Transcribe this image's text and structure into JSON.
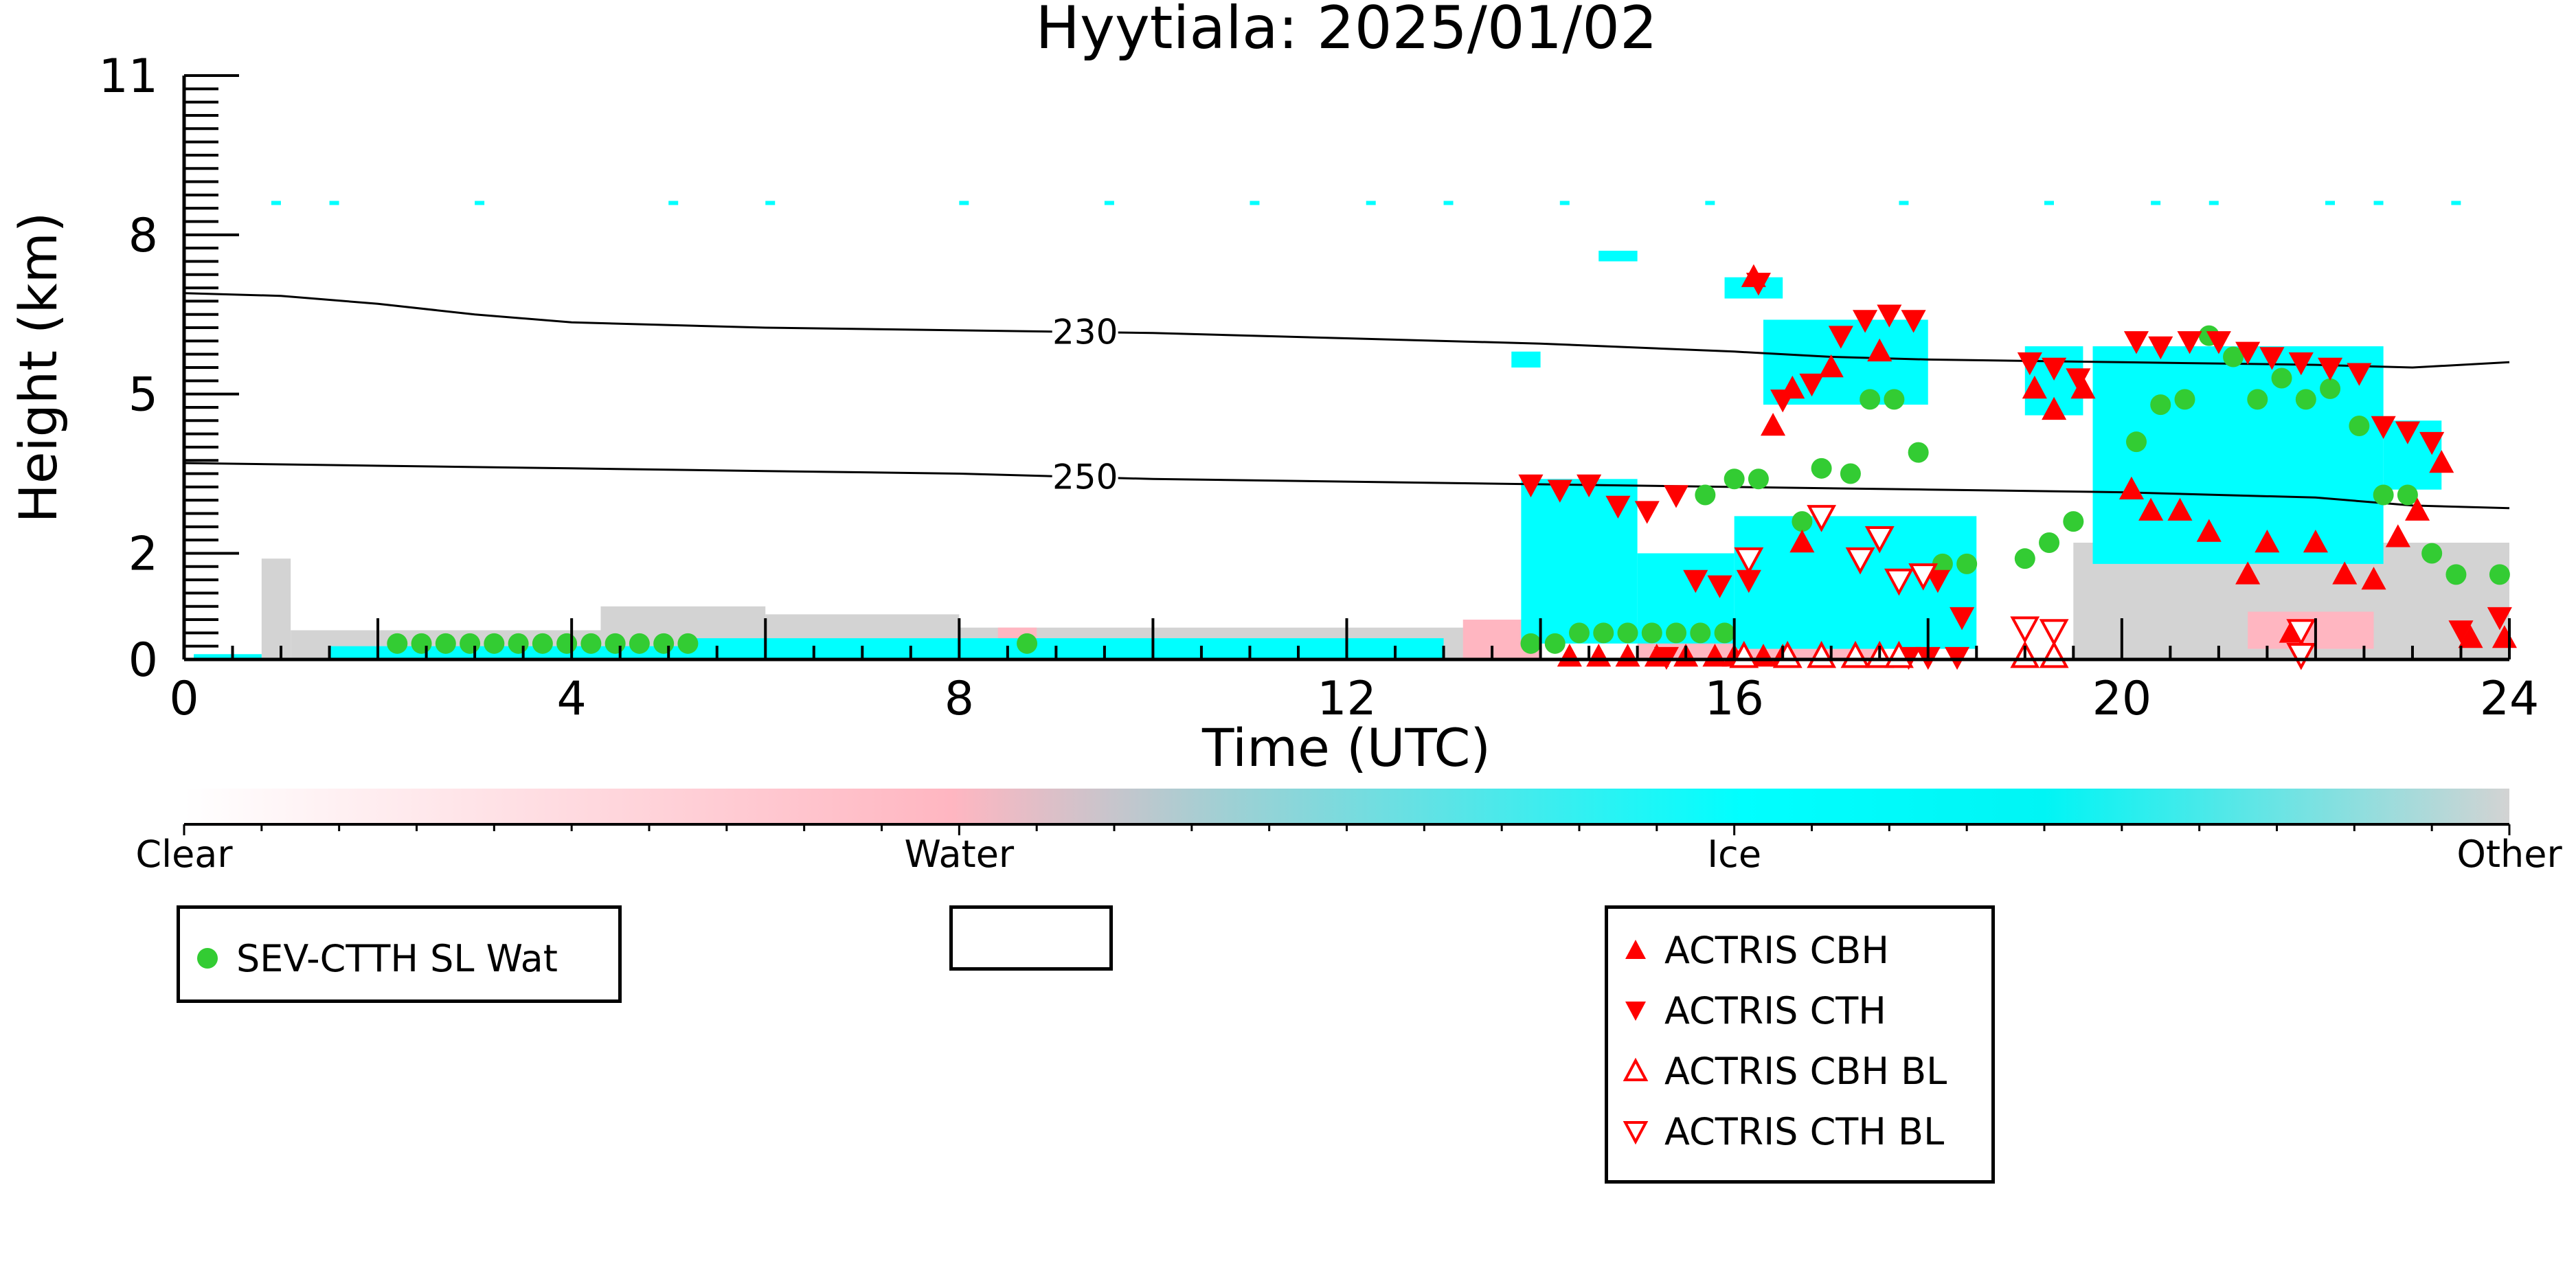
{
  "chart_data": {
    "type": "scatter",
    "title": "Hyytiala: 2025/01/02",
    "xlabel": "Time (UTC)",
    "ylabel": "Height (km)",
    "xlim": [
      0,
      24
    ],
    "ylim": [
      0,
      11
    ],
    "x_ticks": [
      0,
      4,
      8,
      12,
      16,
      20,
      24
    ],
    "y_ticks": [
      0,
      2,
      5,
      8,
      11
    ],
    "y_tick_labels": [
      "0",
      "2",
      "5",
      "8",
      "11"
    ],
    "colors": {
      "clear": "#ffffff",
      "water": "#ffb6c1",
      "ice": "#00ffff",
      "other": "#d3d3d3",
      "sev_ctth": "#33cc33",
      "actris": "#ff0000"
    },
    "colorbar": {
      "labels": [
        "Clear",
        "Water",
        "Ice",
        "Other"
      ]
    },
    "contours": [
      {
        "label": "230",
        "label_x": 9.3,
        "points": [
          [
            0,
            6.9
          ],
          [
            1,
            6.85
          ],
          [
            2,
            6.7
          ],
          [
            3,
            6.5
          ],
          [
            4,
            6.35
          ],
          [
            6,
            6.25
          ],
          [
            8,
            6.2
          ],
          [
            10,
            6.15
          ],
          [
            12,
            6.05
          ],
          [
            14,
            5.95
          ],
          [
            16,
            5.8
          ],
          [
            17,
            5.7
          ],
          [
            18,
            5.65
          ],
          [
            20,
            5.6
          ],
          [
            22,
            5.55
          ],
          [
            23,
            5.5
          ],
          [
            24,
            5.6
          ]
        ]
      },
      {
        "label": "250",
        "label_x": 9.3,
        "points": [
          [
            0,
            3.7
          ],
          [
            2,
            3.65
          ],
          [
            4,
            3.6
          ],
          [
            6,
            3.55
          ],
          [
            8,
            3.5
          ],
          [
            10,
            3.4
          ],
          [
            12,
            3.35
          ],
          [
            14,
            3.3
          ],
          [
            16,
            3.25
          ],
          [
            18,
            3.2
          ],
          [
            20,
            3.15
          ],
          [
            22,
            3.05
          ],
          [
            23,
            2.9
          ],
          [
            24,
            2.85
          ]
        ]
      }
    ],
    "clouds": {
      "other": [
        {
          "x0": 0.8,
          "x1": 1.1,
          "y0": 0,
          "y1": 1.9
        },
        {
          "x0": 1.1,
          "x1": 4.3,
          "y0": 0,
          "y1": 0.55
        },
        {
          "x0": 4.3,
          "x1": 6.0,
          "y0": 0,
          "y1": 1.0
        },
        {
          "x0": 6.0,
          "x1": 8.0,
          "y0": 0,
          "y1": 0.85
        },
        {
          "x0": 8.0,
          "x1": 13.7,
          "y0": 0,
          "y1": 0.6
        },
        {
          "x0": 19.5,
          "x1": 24.0,
          "y0": 0,
          "y1": 2.2
        }
      ],
      "water": [
        {
          "x0": 8.4,
          "x1": 8.8,
          "y0": 0,
          "y1": 0.6
        },
        {
          "x0": 13.2,
          "x1": 14.0,
          "y0": 0,
          "y1": 0.75
        },
        {
          "x0": 15.0,
          "x1": 17.5,
          "y0": 0,
          "y1": 0.7
        },
        {
          "x0": 21.3,
          "x1": 22.6,
          "y0": 0.2,
          "y1": 0.9
        }
      ],
      "ice": [
        {
          "x0": 0.1,
          "x1": 0.8,
          "y0": 0,
          "y1": 0.1
        },
        {
          "x0": 1.5,
          "x1": 5.2,
          "y0": 0,
          "y1": 0.25
        },
        {
          "x0": 5.2,
          "x1": 13.0,
          "y0": 0,
          "y1": 0.4
        },
        {
          "x0": 13.8,
          "x1": 15.0,
          "y0": 0.3,
          "y1": 3.4
        },
        {
          "x0": 15.0,
          "x1": 16.0,
          "y0": 0.3,
          "y1": 2.0
        },
        {
          "x0": 16.0,
          "x1": 18.5,
          "y0": 0.2,
          "y1": 2.7
        },
        {
          "x0": 16.3,
          "x1": 18.0,
          "y0": 4.8,
          "y1": 6.4
        },
        {
          "x0": 19.0,
          "x1": 19.6,
          "y0": 4.6,
          "y1": 5.9
        },
        {
          "x0": 19.7,
          "x1": 22.7,
          "y0": 1.8,
          "y1": 5.9
        },
        {
          "x0": 22.7,
          "x1": 23.3,
          "y0": 3.2,
          "y1": 4.5
        },
        {
          "x0": 15.9,
          "x1": 16.5,
          "y0": 6.8,
          "y1": 7.2
        },
        {
          "x0": 14.6,
          "x1": 15.0,
          "y0": 7.5,
          "y1": 7.7
        },
        {
          "x0": 13.7,
          "x1": 14.0,
          "y0": 5.5,
          "y1": 5.8
        }
      ],
      "ice_sparse_band": {
        "y": 8.6,
        "x": [
          0.9,
          1.5,
          3.0,
          5.0,
          6.0,
          8.0,
          9.5,
          11.0,
          12.2,
          13.0,
          14.2,
          15.7,
          17.7,
          19.2,
          20.3,
          20.9,
          22.1,
          22.6,
          23.4
        ]
      }
    },
    "series": [
      {
        "name": "SEV-CTTH SL Wat",
        "marker": "filled-circle",
        "points": [
          [
            2.2,
            0.3
          ],
          [
            2.45,
            0.3
          ],
          [
            2.7,
            0.3
          ],
          [
            2.95,
            0.3
          ],
          [
            3.2,
            0.3
          ],
          [
            3.45,
            0.3
          ],
          [
            3.7,
            0.3
          ],
          [
            3.95,
            0.3
          ],
          [
            4.2,
            0.3
          ],
          [
            4.45,
            0.3
          ],
          [
            4.7,
            0.3
          ],
          [
            4.95,
            0.3
          ],
          [
            5.2,
            0.3
          ],
          [
            8.7,
            0.3
          ],
          [
            13.9,
            0.3
          ],
          [
            14.15,
            0.3
          ],
          [
            14.4,
            0.5
          ],
          [
            14.65,
            0.5
          ],
          [
            14.9,
            0.5
          ],
          [
            15.15,
            0.5
          ],
          [
            15.4,
            0.5
          ],
          [
            15.65,
            0.5
          ],
          [
            15.9,
            0.5
          ],
          [
            15.7,
            3.1
          ],
          [
            16.0,
            3.4
          ],
          [
            16.25,
            3.4
          ],
          [
            16.7,
            2.6
          ],
          [
            16.9,
            3.6
          ],
          [
            17.2,
            3.5
          ],
          [
            17.4,
            4.9
          ],
          [
            17.65,
            4.9
          ],
          [
            17.9,
            3.9
          ],
          [
            18.15,
            1.8
          ],
          [
            18.4,
            1.8
          ],
          [
            19.0,
            1.9
          ],
          [
            19.25,
            2.2
          ],
          [
            19.5,
            2.6
          ],
          [
            20.15,
            4.1
          ],
          [
            20.4,
            4.8
          ],
          [
            20.65,
            4.9
          ],
          [
            20.9,
            6.1
          ],
          [
            21.15,
            5.7
          ],
          [
            21.4,
            4.9
          ],
          [
            21.65,
            5.3
          ],
          [
            21.9,
            4.9
          ],
          [
            22.15,
            5.1
          ],
          [
            22.45,
            4.4
          ],
          [
            22.7,
            3.1
          ],
          [
            22.95,
            3.1
          ],
          [
            23.2,
            2.0
          ],
          [
            23.45,
            1.6
          ],
          [
            23.9,
            1.6
          ]
        ]
      },
      {
        "name": "ACTRIS CBH",
        "marker": "filled-triangle-up",
        "points": [
          [
            16.2,
            7.2
          ],
          [
            16.4,
            4.4
          ],
          [
            16.6,
            5.1
          ],
          [
            17.0,
            5.5
          ],
          [
            17.5,
            5.8
          ],
          [
            19.1,
            5.1
          ],
          [
            19.3,
            4.7
          ],
          [
            19.6,
            5.1
          ],
          [
            20.1,
            3.2
          ],
          [
            20.3,
            2.8
          ],
          [
            20.6,
            2.8
          ],
          [
            20.9,
            2.4
          ],
          [
            21.3,
            1.6
          ],
          [
            21.5,
            2.2
          ],
          [
            21.75,
            0.5
          ],
          [
            22.0,
            2.2
          ],
          [
            22.3,
            1.6
          ],
          [
            22.6,
            1.5
          ],
          [
            22.85,
            2.3
          ],
          [
            23.05,
            2.8
          ],
          [
            23.3,
            3.7
          ],
          [
            23.6,
            0.4
          ],
          [
            23.95,
            0.4
          ],
          [
            16.0,
            0.05
          ],
          [
            16.3,
            0.05
          ],
          [
            16.5,
            0.05
          ],
          [
            16.7,
            2.2
          ],
          [
            14.3,
            0.05
          ],
          [
            14.6,
            0.05
          ],
          [
            14.9,
            0.05
          ],
          [
            15.2,
            0.05
          ],
          [
            15.5,
            0.05
          ],
          [
            15.8,
            0.05
          ]
        ]
      },
      {
        "name": "ACTRIS CTH",
        "marker": "filled-triangle-down",
        "points": [
          [
            13.9,
            3.3
          ],
          [
            14.2,
            3.2
          ],
          [
            14.5,
            3.3
          ],
          [
            14.8,
            2.9
          ],
          [
            15.1,
            2.8
          ],
          [
            15.4,
            3.1
          ],
          [
            15.6,
            1.5
          ],
          [
            15.85,
            1.4
          ],
          [
            16.15,
            1.5
          ],
          [
            16.25,
            7.1
          ],
          [
            16.5,
            4.9
          ],
          [
            16.8,
            5.2
          ],
          [
            17.1,
            6.1
          ],
          [
            17.35,
            6.4
          ],
          [
            17.6,
            6.5
          ],
          [
            17.85,
            6.4
          ],
          [
            19.05,
            5.6
          ],
          [
            19.3,
            5.5
          ],
          [
            19.55,
            5.3
          ],
          [
            20.15,
            6.0
          ],
          [
            20.4,
            5.9
          ],
          [
            20.7,
            6.0
          ],
          [
            21.0,
            6.0
          ],
          [
            21.3,
            5.8
          ],
          [
            21.55,
            5.7
          ],
          [
            21.85,
            5.6
          ],
          [
            22.15,
            5.5
          ],
          [
            22.45,
            5.4
          ],
          [
            22.7,
            4.4
          ],
          [
            22.95,
            4.3
          ],
          [
            23.2,
            4.1
          ],
          [
            23.5,
            0.55
          ],
          [
            23.9,
            0.8
          ],
          [
            18.1,
            1.5
          ],
          [
            18.35,
            0.8
          ],
          [
            15.3,
            0.05
          ],
          [
            17.8,
            0.05
          ],
          [
            18.0,
            0.05
          ],
          [
            18.3,
            0.05
          ]
        ]
      },
      {
        "name": "ACTRIS CBH BL",
        "marker": "open-triangle-up",
        "points": [
          [
            19.0,
            0.05
          ],
          [
            19.3,
            0.05
          ],
          [
            16.1,
            0.05
          ],
          [
            16.55,
            0.05
          ],
          [
            16.9,
            0.05
          ],
          [
            17.25,
            0.05
          ],
          [
            17.5,
            0.05
          ],
          [
            17.7,
            0.05
          ]
        ]
      },
      {
        "name": "ACTRIS CTH BL",
        "marker": "open-triangle-down",
        "points": [
          [
            16.15,
            1.9
          ],
          [
            16.9,
            2.7
          ],
          [
            17.3,
            1.9
          ],
          [
            17.5,
            2.3
          ],
          [
            17.7,
            1.5
          ],
          [
            17.95,
            1.6
          ],
          [
            19.0,
            0.6
          ],
          [
            19.3,
            0.55
          ],
          [
            21.85,
            0.55
          ],
          [
            21.85,
            0.1
          ]
        ]
      }
    ],
    "legend": {
      "placement": "bottom",
      "box1": [
        "SEV-CTTH SL Wat"
      ],
      "box2": [],
      "box3": [
        "ACTRIS CBH",
        "ACTRIS CTH",
        "ACTRIS CBH BL",
        "ACTRIS CTH BL"
      ]
    }
  }
}
